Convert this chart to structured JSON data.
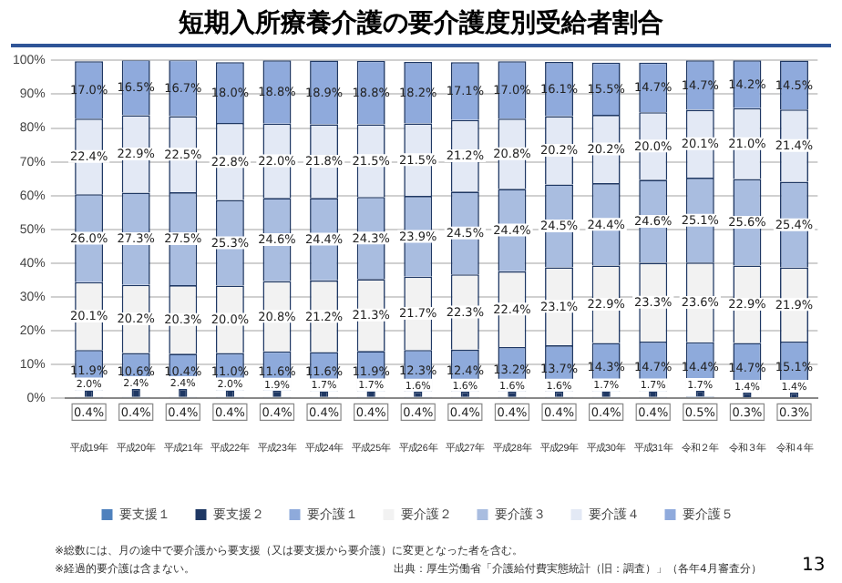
{
  "chart_data": {
    "type": "bar",
    "stacked": true,
    "title": "短期入所療養介護の要介護度別受給者割合",
    "categories": [
      "平成19年",
      "平成20年",
      "平成21年",
      "平成22年",
      "平成23年",
      "平成24年",
      "平成25年",
      "平成26年",
      "平成27年",
      "平成28年",
      "平成29年",
      "平成30年",
      "平成31年",
      "令和２年",
      "令和３年",
      "令和４年"
    ],
    "ylim": [
      0,
      100
    ],
    "yticks": [
      {
        "value": 0,
        "label": "0%"
      },
      {
        "value": 10,
        "label": "10%"
      },
      {
        "value": 20,
        "label": "20%"
      },
      {
        "value": 30,
        "label": "30%"
      },
      {
        "value": 40,
        "label": "40%"
      },
      {
        "value": 50,
        "label": "50%"
      },
      {
        "value": 60,
        "label": "60%"
      },
      {
        "value": 70,
        "label": "70%"
      },
      {
        "value": 80,
        "label": "80%"
      },
      {
        "value": 90,
        "label": "90%"
      },
      {
        "value": 100,
        "label": "100%"
      }
    ],
    "grid": "y",
    "legend": "bottom",
    "series": [
      {
        "name": "要支援１",
        "color": "#4f81bd",
        "values": [
          0.4,
          0.4,
          0.4,
          0.4,
          0.4,
          0.4,
          0.4,
          0.4,
          0.4,
          0.4,
          0.4,
          0.4,
          0.4,
          0.5,
          0.3,
          0.3
        ],
        "value_labels": [
          "0.4%",
          "0.4%",
          "0.4%",
          "0.4%",
          "0.4%",
          "0.4%",
          "0.4%",
          "0.4%",
          "0.4%",
          "0.4%",
          "0.4%",
          "0.4%",
          "0.4%",
          "0.5%",
          "0.3%",
          "0.3%"
        ]
      },
      {
        "name": "要支援２",
        "color": "#1f3864",
        "values": [
          2.0,
          2.4,
          2.4,
          2.0,
          1.9,
          1.7,
          1.7,
          1.6,
          1.6,
          1.6,
          1.6,
          1.7,
          1.7,
          1.7,
          1.4,
          1.4
        ],
        "value_labels": [
          "2.0%",
          "2.4%",
          "2.4%",
          "2.0%",
          "1.9%",
          "1.7%",
          "1.7%",
          "1.6%",
          "1.6%",
          "1.6%",
          "1.6%",
          "1.7%",
          "1.7%",
          "1.7%",
          "1.4%",
          "1.4%"
        ]
      },
      {
        "name": "要介護１",
        "color": "#8eaadb",
        "values": [
          11.9,
          10.6,
          10.4,
          11.0,
          11.6,
          11.6,
          11.9,
          12.3,
          12.4,
          13.2,
          13.7,
          14.3,
          14.7,
          14.4,
          14.7,
          15.1
        ],
        "value_labels": [
          "11.9%",
          "10.6%",
          "10.4%",
          "11.0%",
          "11.6%",
          "11.6%",
          "11.9%",
          "12.3%",
          "12.4%",
          "13.2%",
          "13.7%",
          "14.3%",
          "14.7%",
          "14.4%",
          "14.7%",
          "15.1%"
        ]
      },
      {
        "name": "要介護２",
        "color": "#f2f2f2",
        "values": [
          20.1,
          20.2,
          20.3,
          20.0,
          20.8,
          21.2,
          21.3,
          21.7,
          22.3,
          22.4,
          23.1,
          22.9,
          23.3,
          23.6,
          22.9,
          21.9
        ],
        "value_labels": [
          "20.1%",
          "20.2%",
          "20.3%",
          "20.0%",
          "20.8%",
          "21.2%",
          "21.3%",
          "21.7%",
          "22.3%",
          "22.4%",
          "23.1%",
          "22.9%",
          "23.3%",
          "23.6%",
          "22.9%",
          "21.9%"
        ]
      },
      {
        "name": "要介護３",
        "color": "#a9bde0",
        "values": [
          26.0,
          27.3,
          27.5,
          25.3,
          24.6,
          24.4,
          24.3,
          23.9,
          24.5,
          24.4,
          24.5,
          24.4,
          24.6,
          25.1,
          25.6,
          25.4
        ],
        "value_labels": [
          "26.0%",
          "27.3%",
          "27.5%",
          "25.3%",
          "24.6%",
          "24.4%",
          "24.3%",
          "23.9%",
          "24.5%",
          "24.4%",
          "24.5%",
          "24.4%",
          "24.6%",
          "25.1%",
          "25.6%",
          "25.4%"
        ]
      },
      {
        "name": "要介護４",
        "color": "#e3e9f5",
        "values": [
          22.4,
          22.9,
          22.5,
          22.8,
          22.0,
          21.8,
          21.5,
          21.5,
          21.2,
          20.8,
          20.2,
          20.2,
          20.0,
          20.1,
          21.0,
          21.4
        ],
        "value_labels": [
          "22.4%",
          "22.9%",
          "22.5%",
          "22.8%",
          "22.0%",
          "21.8%",
          "21.5%",
          "21.5%",
          "21.2%",
          "20.8%",
          "20.2%",
          "20.2%",
          "20.0%",
          "20.1%",
          "21.0%",
          "21.4%"
        ]
      },
      {
        "name": "要介護５",
        "color": "#8faadc",
        "values": [
          17.0,
          16.5,
          16.7,
          18.0,
          18.8,
          18.9,
          18.8,
          18.2,
          17.1,
          17.0,
          16.1,
          15.5,
          14.7,
          14.7,
          14.2,
          14.5
        ],
        "value_labels": [
          "17.0%",
          "16.5%",
          "16.7%",
          "18.0%",
          "18.8%",
          "18.9%",
          "18.8%",
          "18.2%",
          "17.1%",
          "17.0%",
          "16.1%",
          "15.5%",
          "14.7%",
          "14.7%",
          "14.2%",
          "14.5%"
        ]
      }
    ],
    "annotations": [
      "※総数には、月の途中で要介護から要支援（又は要支援から要介護）に変更となった者を含む。",
      "※経過的要介護は含まない。",
      "出典：厚生労働省「介護給付費実態統計（旧：調査）」（各年4月審査分）",
      "13"
    ]
  }
}
